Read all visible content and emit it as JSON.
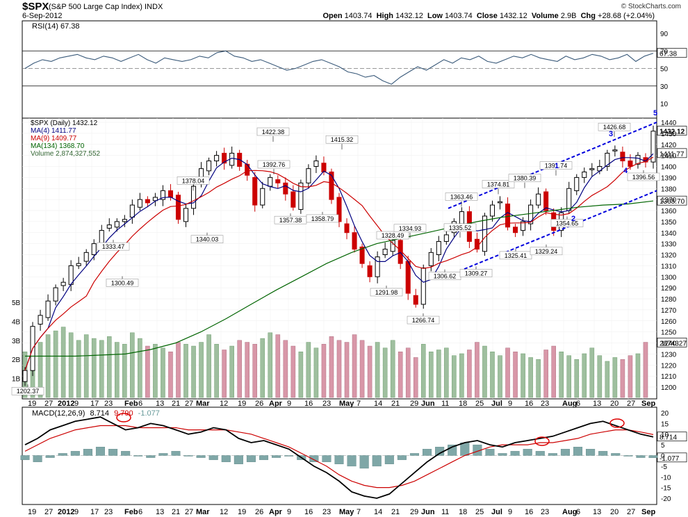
{
  "header": {
    "symbol": "$SPX",
    "description": "(S&P 500 Large Cap Index)  INDX",
    "date": "6-Sep-2012",
    "brand": "© StockCharts.com",
    "open_label": "Open",
    "open": "1403.74",
    "high_label": "High",
    "high": "1432.12",
    "low_label": "Low",
    "low": "1403.74",
    "close_label": "Close",
    "close": "1432.12",
    "volume_label": "Volume",
    "volume": "2.9B",
    "chg_label": "Chg",
    "chg": "+28.68 (+2.04%)"
  },
  "rsi": {
    "label": "RSI(14) 67.38",
    "value_tag": "67.38",
    "ticks": [
      "90",
      "70",
      "50",
      "30",
      "10"
    ]
  },
  "price": {
    "legend": [
      "$SPX (Daily) 1432.12",
      "MA(4) 1411.77",
      "MA(9) 1409.77",
      "MA(134) 1368.70",
      "Volume 2,874,327,552"
    ],
    "ticks": [
      "1440",
      "1430",
      "1420",
      "1410",
      "1400",
      "1390",
      "1380",
      "1370",
      "1360",
      "1350",
      "1340",
      "1330",
      "1320",
      "1310",
      "1300",
      "1290",
      "1280",
      "1270",
      "1260",
      "1250",
      "1240",
      "1230",
      "1220",
      "1210",
      "1200"
    ],
    "tag_close": "1432.12",
    "tag_ma4": "1411.77",
    "tag_ma134": "1368.70",
    "tag_vol": "2874327",
    "vol_ticks": [
      "5B",
      "4B",
      "3B",
      "2B",
      "1B"
    ],
    "wave_labels": [
      "1",
      "2",
      "3",
      "4",
      "5"
    ]
  },
  "macd": {
    "label": "MACD(12,26,9)",
    "v1": "8.714",
    "v2": "9.790",
    "v3": "-1.077",
    "tag1": "8.714",
    "tag2": "-1.077",
    "ticks": [
      "20",
      "15",
      "10",
      "5",
      "0",
      "-5",
      "-10",
      "-15",
      "-20"
    ]
  },
  "x_labels": [
    "19",
    "27",
    "2012",
    "9",
    "17",
    "23",
    "Feb",
    "6",
    "13",
    "21",
    "27",
    "Mar",
    "12",
    "19",
    "26",
    "Apr",
    "9",
    "16",
    "23",
    "May",
    "7",
    "14",
    "21",
    "29",
    "Jun",
    "11",
    "18",
    "25",
    "Jul",
    "9",
    "16",
    "23",
    "Aug",
    "6",
    "13",
    "20",
    "27",
    "Sep"
  ],
  "colors": {
    "up": "#000000",
    "down": "#cc0000",
    "ma4": "#000080",
    "ma9": "#cc0000",
    "ma134": "#006400",
    "vol_up": "#9fbf9f",
    "vol_down": "#d897a8",
    "trend": "#0000dd",
    "macd_line": "#000000",
    "macd_signal": "#cc0000",
    "hist": "#7fa7a7"
  },
  "chart_data": {
    "type": "candlestick",
    "title": "$SPX (S&P 500 Large Cap Index) INDX",
    "annotations": [
      {
        "label": "1202.37",
        "value": 1202.37
      },
      {
        "label": "1300.49",
        "value": 1300.49
      },
      {
        "label": "1333.47",
        "value": 1333.47
      },
      {
        "label": "1378.04",
        "value": 1378.04
      },
      {
        "label": "1340.03",
        "value": 1340.03
      },
      {
        "label": "1422.38",
        "value": 1422.38
      },
      {
        "label": "1357.38",
        "value": 1357.38
      },
      {
        "label": "1392.76",
        "value": 1392.76
      },
      {
        "label": "1358.79",
        "value": 1358.79
      },
      {
        "label": "1415.32",
        "value": 1415.32
      },
      {
        "label": "1291.98",
        "value": 1291.98
      },
      {
        "label": "1328.49",
        "value": 1328.49
      },
      {
        "label": "1334.93",
        "value": 1334.93
      },
      {
        "label": "1266.74",
        "value": 1266.74
      },
      {
        "label": "1306.62",
        "value": 1306.62
      },
      {
        "label": "1335.52",
        "value": 1335.52
      },
      {
        "label": "1363.46",
        "value": 1363.46
      },
      {
        "label": "1309.27",
        "value": 1309.27
      },
      {
        "label": "1374.81",
        "value": 1374.81
      },
      {
        "label": "1325.41",
        "value": 1325.41
      },
      {
        "label": "1380.39",
        "value": 1380.39
      },
      {
        "label": "1329.24",
        "value": 1329.24
      },
      {
        "label": "1391.74",
        "value": 1391.74
      },
      {
        "label": "1354.65",
        "value": 1354.65
      },
      {
        "label": "1426.68",
        "value": 1426.68
      },
      {
        "label": "1396.56",
        "value": 1396.56
      }
    ],
    "close_path": [
      1215,
      1255,
      1265,
      1278,
      1290,
      1295,
      1310,
      1312,
      1322,
      1330,
      1342,
      1347,
      1350,
      1352,
      1365,
      1370,
      1367,
      1372,
      1378,
      1372,
      1352,
      1362,
      1382,
      1398,
      1405,
      1410,
      1403,
      1412,
      1400,
      1392,
      1365,
      1380,
      1390,
      1385,
      1375,
      1363,
      1385,
      1398,
      1405,
      1395,
      1370,
      1350,
      1340,
      1325,
      1312,
      1300,
      1318,
      1325,
      1333,
      1312,
      1285,
      1275,
      1308,
      1322,
      1332,
      1338,
      1350,
      1359,
      1332,
      1325,
      1355,
      1365,
      1368,
      1345,
      1340,
      1350,
      1365,
      1375,
      1360,
      1342,
      1358,
      1380,
      1390,
      1395,
      1398,
      1400,
      1412,
      1415,
      1405,
      1400,
      1410,
      1404,
      1432
    ],
    "ma134_path": [
      1228,
      1228,
      1228,
      1229,
      1230,
      1234,
      1240,
      1250,
      1262,
      1275,
      1288,
      1300,
      1312,
      1322,
      1330,
      1335,
      1340,
      1345,
      1350,
      1354,
      1357,
      1360,
      1363,
      1365,
      1366,
      1368.7
    ],
    "volume_billions": [
      2.4,
      3.1,
      2.9,
      3.3,
      3.5,
      3.7,
      3.4,
      3.0,
      3.3,
      3.1,
      3.0,
      3.2,
      2.9,
      2.8,
      3.4,
      3.1,
      2.7,
      2.8,
      2.6,
      2.4,
      2.9,
      2.8,
      2.7,
      2.9,
      3.3,
      2.8,
      2.5,
      2.7,
      3.0,
      2.9,
      2.8,
      3.1,
      3.4,
      3.3,
      3.0,
      2.7,
      2.4,
      2.9,
      2.6,
      2.8,
      3.2,
      3.0,
      2.9,
      3.3,
      3.0,
      2.7,
      2.9,
      2.6,
      3.0,
      2.4,
      2.6,
      2.1,
      2.8,
      2.4,
      2.5,
      2.6,
      2.2,
      2.3,
      2.5,
      2.9,
      2.7,
      2.4,
      2.2,
      2.6,
      2.4,
      2.3,
      2.1,
      2.0,
      2.5,
      2.7,
      2.4,
      2.2,
      2.0,
      2.3,
      2.6,
      2.2,
      1.9,
      2.1,
      2.0,
      2.2,
      2.3,
      2.9
    ],
    "rsi_path": [
      50,
      56,
      60,
      58,
      62,
      64,
      66,
      62,
      60,
      64,
      62,
      58,
      62,
      66,
      60,
      56,
      62,
      60,
      58,
      60,
      64,
      62,
      68,
      70,
      64,
      62,
      58,
      60,
      56,
      52,
      48,
      50,
      54,
      58,
      60,
      56,
      52,
      46,
      44,
      40,
      42,
      36,
      32,
      40,
      46,
      52,
      48,
      54,
      60,
      56,
      62,
      60,
      64,
      58,
      56,
      60,
      64,
      62,
      66,
      62,
      60,
      58,
      64,
      60,
      62,
      66,
      64,
      60,
      62,
      66,
      58,
      64,
      67.38
    ],
    "macd_path": [
      5,
      8,
      12,
      14,
      16,
      17,
      18,
      15,
      12,
      13,
      15,
      14,
      12,
      10,
      11,
      13,
      12,
      8,
      6,
      7,
      5,
      3,
      -1,
      -5,
      -8,
      -12,
      -17,
      -19,
      -20,
      -18,
      -13,
      -8,
      -3,
      1,
      4,
      6,
      7,
      5,
      4,
      6,
      7,
      8,
      9,
      11,
      13,
      15,
      16,
      14,
      12,
      10,
      8.714
    ],
    "macd_signal_path": [
      2,
      5,
      8,
      10,
      12,
      13,
      14,
      14,
      14,
      13,
      13,
      13,
      13,
      12,
      12,
      12,
      12,
      11,
      10,
      8,
      6,
      4,
      1,
      -2,
      -5,
      -9,
      -12,
      -14,
      -15,
      -15,
      -14,
      -12,
      -9,
      -6,
      -3,
      0,
      2,
      4,
      5,
      5,
      5,
      6,
      6,
      7,
      8,
      10,
      11,
      12,
      12,
      11,
      9.79
    ],
    "hist_path": [
      -2,
      -3,
      -1,
      1,
      2,
      3,
      4,
      3,
      2,
      0,
      -1,
      1,
      2,
      0,
      -1,
      -2,
      -3,
      -4,
      -3,
      -2,
      -1,
      0,
      -2,
      -3,
      -3,
      -4,
      -5,
      -6,
      -5,
      -4,
      -2,
      1,
      3,
      4,
      5,
      6,
      5,
      3,
      1,
      2,
      3,
      2,
      1,
      3,
      4,
      3,
      2,
      1,
      0,
      -1,
      -1.077
    ],
    "ylim": [
      1195,
      1445
    ],
    "rsi_ylim": [
      0,
      100
    ],
    "macd_ylim": [
      -22,
      22
    ]
  }
}
